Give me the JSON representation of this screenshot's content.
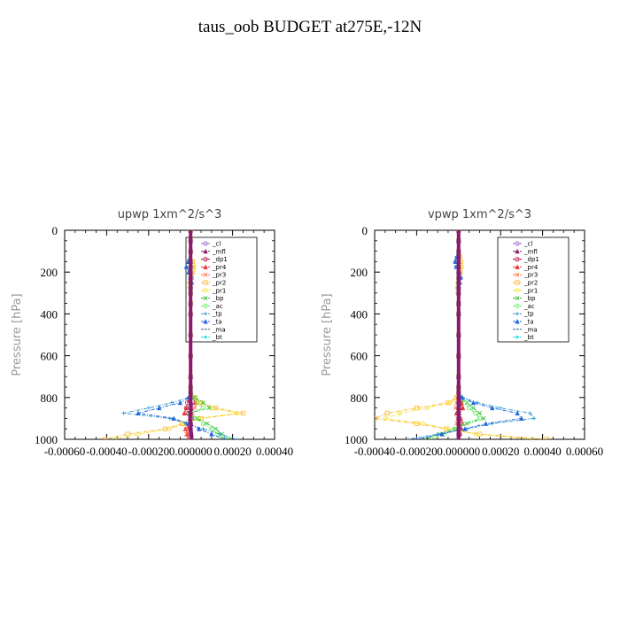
{
  "title": "taus_oob  BUDGET at275E,-12N",
  "legend_labels": [
    "_cl",
    "_mfl",
    "_dp1",
    "_pr4",
    "_pr3",
    "_pr2",
    "_pr1",
    "_bp",
    "_ac",
    "_tp",
    "_ta",
    "_ma",
    "_bt"
  ],
  "colors": {
    "_cl": "#9966cc",
    "_mfl": "#8b1a6b",
    "_dp1": "#b8003c",
    "_pr4": "#e8333c",
    "_pr3": "#ff6b3a",
    "_pr2": "#ffb830",
    "_pr1": "#f5e23a",
    "_bp": "#33bb33",
    "_ac": "#66ee66",
    "_tp": "#3399cc",
    "_ta": "#2266dd",
    "_ma": "#336699",
    "_bt": "#33e0e0"
  },
  "chart_data": [
    {
      "type": "line",
      "title": "upwp   1xm^2/s^3",
      "ylabel": "Pressure [hPa]",
      "xlim": [
        -0.0006,
        0.0004
      ],
      "ylim": [
        1000,
        0
      ],
      "x_tick_labels": [
        "-0.00060",
        "-0.00040",
        "-0.00020",
        "0.000000",
        "0.00020",
        "0.00040"
      ],
      "y_tick_labels": [
        "0",
        "200",
        "400",
        "600",
        "800",
        "1000"
      ],
      "legend": "top-right",
      "pressure": [
        0,
        50,
        100,
        150,
        175,
        200,
        225,
        250,
        275,
        300,
        350,
        400,
        500,
        600,
        700,
        750,
        775,
        800,
        825,
        850,
        875,
        900,
        925,
        950,
        975,
        1000
      ],
      "series": [
        {
          "name": "_cl",
          "values": [
            0,
            0,
            0,
            0,
            0,
            0,
            0,
            0,
            0,
            0,
            0,
            0,
            0,
            0,
            0,
            0,
            0,
            0,
            0,
            0,
            0,
            0,
            0,
            0,
            0,
            0
          ]
        },
        {
          "name": "_mfl",
          "values": [
            0,
            0,
            0,
            0,
            0,
            0,
            0,
            0,
            0,
            0,
            0,
            0,
            0,
            0,
            0,
            0,
            0,
            0,
            0,
            2e-06,
            0,
            -3e-06,
            2e-06,
            0,
            4e-06,
            5e-06
          ]
        },
        {
          "name": "_dp1",
          "values": [
            0,
            0,
            0,
            0,
            0,
            0,
            0,
            0,
            0,
            0,
            0,
            0,
            0,
            0,
            0,
            0,
            0,
            -5e-06,
            -1.5e-05,
            -2e-05,
            -1e-05,
            5e-06,
            -1e-05,
            -1.2e-05,
            -5e-06,
            0
          ]
        },
        {
          "name": "_pr4",
          "values": [
            0,
            0,
            0,
            0,
            0,
            0,
            0,
            0,
            0,
            0,
            0,
            0,
            0,
            0,
            0,
            0,
            0,
            1e-05,
            2e-05,
            -2e-05,
            -3e-05,
            1e-05,
            -2e-05,
            -2.5e-05,
            -1.5e-05,
            -1e-05
          ]
        },
        {
          "name": "_pr3",
          "values": [
            0,
            0,
            0,
            0,
            0,
            0,
            0,
            0,
            0,
            0,
            0,
            0,
            0,
            0,
            0,
            0,
            0,
            1.5e-05,
            3e-05,
            2e-05,
            1e-05,
            1e-05,
            -1e-05,
            -2e-05,
            -2e-05,
            -1e-05
          ]
        },
        {
          "name": "_pr2",
          "values": [
            0,
            0,
            0,
            1e-05,
            1.5e-05,
            1e-05,
            5e-06,
            0,
            0,
            0,
            0,
            0,
            0,
            0,
            0,
            0,
            0,
            2e-05,
            5e-05,
            0.00012,
            0.00025,
            5e-05,
            -4e-05,
            -0.00012,
            -0.0003,
            -0.00041
          ]
        },
        {
          "name": "_pr1",
          "values": [
            0,
            0,
            0,
            8e-06,
            1e-05,
            5e-06,
            0,
            -5e-06,
            -3e-06,
            0,
            0,
            0,
            0,
            0,
            0,
            0,
            0,
            1.5e-05,
            4e-05,
            0.0001,
            0.00022,
            4e-05,
            -3e-05,
            -0.0001,
            -0.00025,
            -0.00036
          ]
        },
        {
          "name": "_bp",
          "values": [
            0,
            0,
            0,
            0,
            0,
            0,
            0,
            0,
            0,
            0,
            0,
            0,
            0,
            0,
            0,
            0,
            0,
            2e-05,
            6e-05,
            9e-05,
            -1e-05,
            3e-05,
            8e-05,
            0.00012,
            0.00015,
            0.00018
          ]
        },
        {
          "name": "_ac",
          "values": [
            0,
            0,
            0,
            0,
            0,
            0,
            0,
            0,
            0,
            0,
            0,
            0,
            0,
            0,
            0,
            0,
            0,
            1e-05,
            3e-05,
            6e-05,
            0,
            2e-05,
            6e-05,
            0.0001,
            0.00013,
            0.00016
          ]
        },
        {
          "name": "_tp",
          "values": [
            0,
            0,
            0,
            -1.5e-05,
            -2e-05,
            -5e-06,
            5e-06,
            8e-06,
            3e-06,
            0,
            0,
            0,
            0,
            0,
            0,
            0,
            0,
            -1e-05,
            -9e-05,
            -0.0002,
            -0.00032,
            -0.0001,
            -2e-05,
            6e-05,
            0.00014,
            0.00022
          ]
        },
        {
          "name": "_ta",
          "values": [
            0,
            0,
            0,
            -1e-05,
            -2e-05,
            -1e-05,
            0,
            5e-06,
            0,
            0,
            0,
            0,
            0,
            0,
            0,
            0,
            0,
            -8e-06,
            -5e-05,
            -0.00015,
            -0.00025,
            -8e-05,
            -1e-05,
            4e-05,
            0.0001,
            0.00016
          ]
        },
        {
          "name": "_ma",
          "values": [
            0,
            0,
            0,
            0,
            0,
            0,
            0,
            0,
            0,
            0,
            0,
            0,
            0,
            0,
            0,
            0,
            0,
            0,
            0,
            0,
            0,
            0,
            0,
            0,
            0,
            0
          ]
        },
        {
          "name": "_bt",
          "values": [
            0,
            0,
            0,
            0,
            0,
            0,
            0,
            0,
            0,
            0,
            0,
            0,
            0,
            0,
            0,
            0,
            0,
            0,
            0,
            0,
            0,
            0,
            0,
            0,
            0,
            0
          ]
        }
      ]
    },
    {
      "type": "line",
      "title": "vpwp   1xm^2/s^3",
      "ylabel": "Pressure [hPa]",
      "xlim": [
        -0.0004,
        0.0006
      ],
      "ylim": [
        1000,
        0
      ],
      "x_tick_labels": [
        "-0.00040",
        "-0.00020",
        "0.000000",
        "0.00020",
        "0.00040",
        "0.00060"
      ],
      "y_tick_labels": [
        "0",
        "200",
        "400",
        "600",
        "800",
        "1000"
      ],
      "legend": "top-right",
      "pressure": [
        0,
        50,
        100,
        125,
        150,
        175,
        200,
        225,
        250,
        275,
        300,
        350,
        400,
        500,
        600,
        700,
        750,
        775,
        800,
        825,
        850,
        875,
        900,
        925,
        950,
        975,
        1000
      ],
      "series": [
        {
          "name": "_cl",
          "values": [
            0,
            0,
            0,
            0,
            0,
            0,
            0,
            0,
            0,
            0,
            0,
            0,
            0,
            0,
            0,
            0,
            0,
            0,
            0,
            0,
            0,
            0,
            0,
            0,
            0,
            0,
            0
          ]
        },
        {
          "name": "_mfl",
          "values": [
            0,
            0,
            0,
            0,
            0,
            0,
            0,
            0,
            0,
            0,
            0,
            0,
            0,
            0,
            0,
            0,
            0,
            0,
            0,
            0,
            0,
            0,
            0,
            0,
            0,
            0,
            0
          ]
        },
        {
          "name": "_dp1",
          "values": [
            0,
            0,
            0,
            0,
            0,
            0,
            0,
            0,
            0,
            0,
            0,
            0,
            0,
            0,
            0,
            0,
            0,
            0,
            3e-06,
            1e-05,
            1.5e-05,
            -5e-06,
            5e-06,
            1e-05,
            8e-06,
            5e-06,
            0
          ]
        },
        {
          "name": "_pr4",
          "values": [
            0,
            0,
            0,
            0,
            0,
            0,
            0,
            0,
            0,
            0,
            0,
            0,
            0,
            0,
            0,
            0,
            0,
            0,
            5e-06,
            1.5e-05,
            2e-05,
            -1e-05,
            1e-05,
            2e-05,
            1e-05,
            5e-06,
            0
          ]
        },
        {
          "name": "_pr3",
          "values": [
            0,
            0,
            0,
            0,
            0,
            0,
            0,
            0,
            0,
            0,
            0,
            0,
            0,
            0,
            0,
            0,
            0,
            0,
            -5e-06,
            -1e-05,
            -1.5e-05,
            5e-06,
            -5e-06,
            -1e-05,
            -5e-06,
            0,
            0
          ]
        },
        {
          "name": "_pr2",
          "values": [
            0,
            0,
            0,
            5e-06,
            1e-05,
            1.2e-05,
            8e-06,
            4e-06,
            0,
            -3e-06,
            0,
            0,
            0,
            0,
            0,
            0,
            0,
            0,
            -1e-05,
            -5e-05,
            -0.0002,
            -0.00034,
            -0.0004,
            -0.0002,
            -6e-05,
            0.0001,
            0.00042
          ]
        },
        {
          "name": "_pr1",
          "values": [
            0,
            0,
            0,
            4e-06,
            8e-06,
            1e-05,
            6e-06,
            0,
            -4e-06,
            -6e-06,
            -5e-06,
            0,
            0,
            0,
            0,
            0,
            0,
            0,
            -8e-06,
            -4e-05,
            -0.00015,
            -0.00028,
            -0.00035,
            -0.00017,
            -5e-05,
            8e-05,
            0.00035
          ]
        },
        {
          "name": "_bp",
          "values": [
            0,
            0,
            0,
            0,
            0,
            0,
            0,
            0,
            0,
            0,
            0,
            0,
            0,
            0,
            0,
            0,
            0,
            0,
            1e-05,
            4e-05,
            7e-05,
            0.0001,
            0.00012,
            4e-05,
            -2e-05,
            -9e-05,
            -0.00016
          ]
        },
        {
          "name": "_ac",
          "values": [
            0,
            0,
            0,
            0,
            0,
            0,
            0,
            0,
            0,
            0,
            0,
            0,
            0,
            0,
            0,
            0,
            0,
            0,
            8e-06,
            3e-05,
            5e-05,
            8e-05,
            0.0001,
            3e-05,
            -2e-05,
            -7e-05,
            -0.00013
          ]
        },
        {
          "name": "_tp",
          "values": [
            0,
            0,
            0,
            -1e-05,
            -2e-05,
            -1.5e-05,
            5e-06,
            1.2e-05,
            8e-06,
            0,
            0,
            0,
            0,
            0,
            0,
            0,
            0,
            0,
            2e-05,
            9e-05,
            0.0002,
            0.00034,
            0.00036,
            0.00016,
            4e-05,
            -0.0001,
            -0.00024
          ]
        },
        {
          "name": "_ta",
          "values": [
            0,
            0,
            0,
            -8e-06,
            -1.5e-05,
            -1e-05,
            3e-06,
            1e-05,
            5e-06,
            0,
            0,
            0,
            0,
            0,
            0,
            0,
            0,
            0,
            1.5e-05,
            7e-05,
            0.00016,
            0.00028,
            0.0003,
            0.00013,
            3e-05,
            -8e-05,
            -0.0002
          ]
        },
        {
          "name": "_ma",
          "values": [
            0,
            0,
            0,
            0,
            0,
            0,
            0,
            0,
            0,
            0,
            0,
            0,
            0,
            0,
            0,
            0,
            0,
            0,
            0,
            0,
            0,
            0,
            0,
            0,
            0,
            0,
            0
          ]
        },
        {
          "name": "_bt",
          "values": [
            0,
            0,
            0,
            0,
            0,
            0,
            0,
            0,
            0,
            0,
            0,
            0,
            0,
            0,
            0,
            0,
            0,
            0,
            0,
            0,
            0,
            0,
            0,
            0,
            0,
            0,
            0
          ]
        }
      ]
    }
  ]
}
